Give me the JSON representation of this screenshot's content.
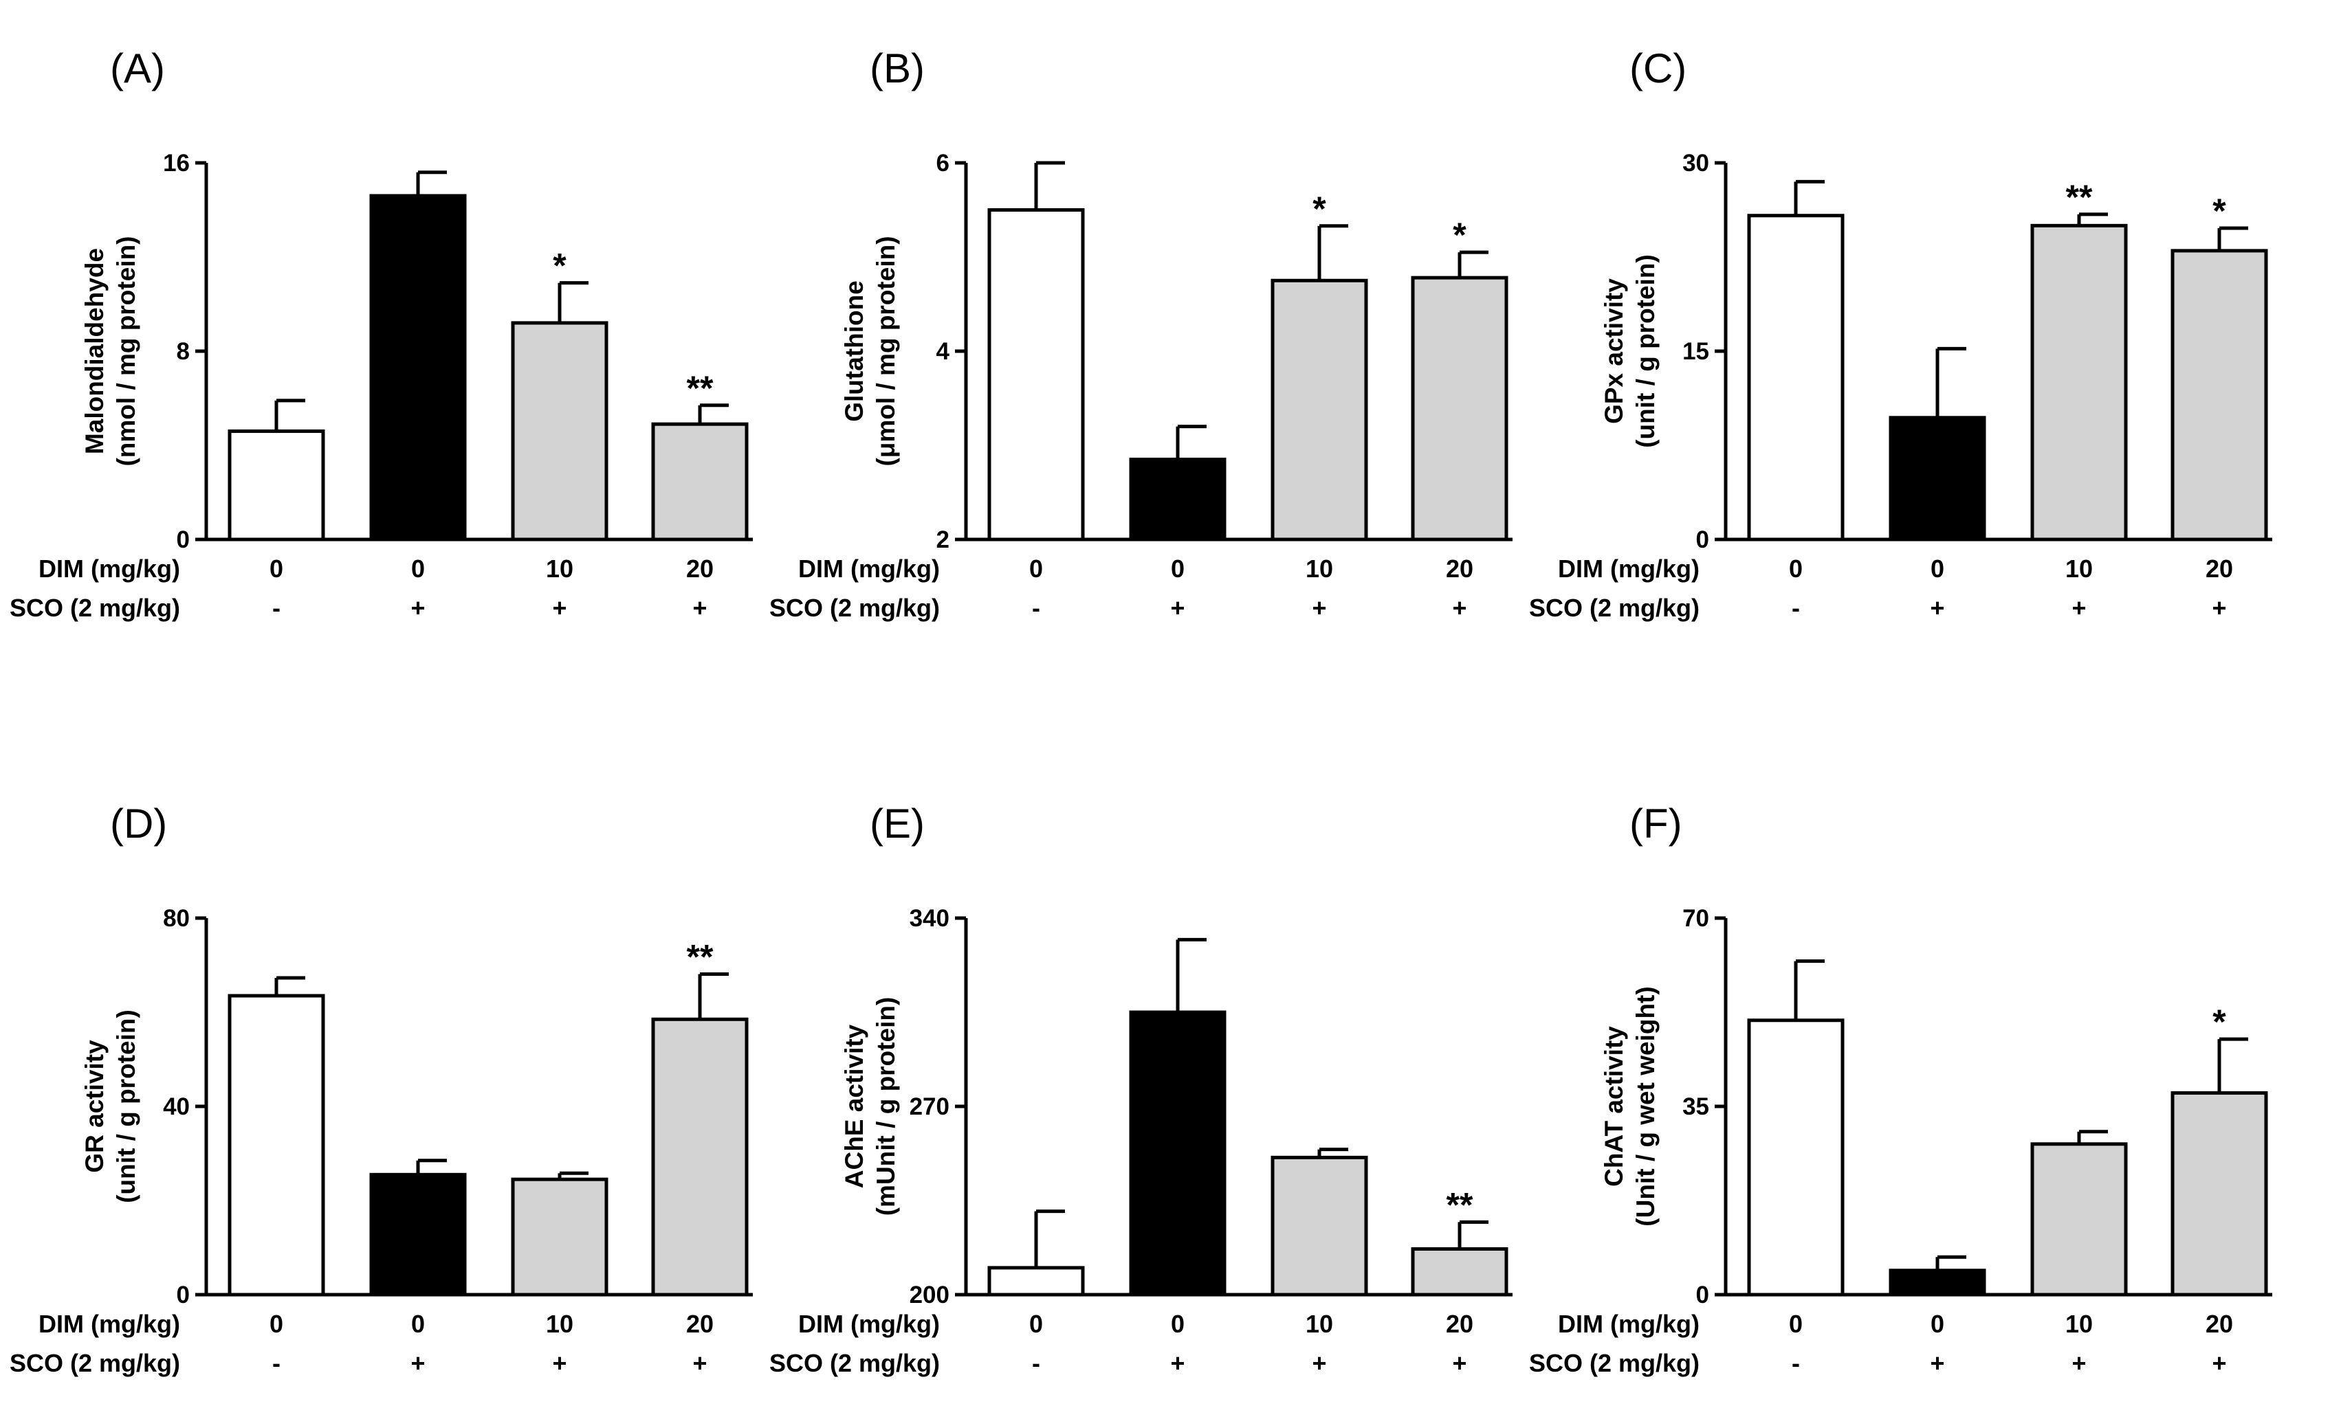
{
  "colors": {
    "control": "#ffffff",
    "sco": "#000000",
    "dim": "#d3d3d3",
    "stroke": "#000000"
  },
  "rows": {
    "dim_label": "DIM (mg/kg)",
    "sco_label": "SCO (2 mg/kg)",
    "dim_values": [
      "0",
      "0",
      "10",
      "20"
    ],
    "sco_values": [
      "-",
      "+",
      "+",
      "+"
    ]
  },
  "chart_data": [
    {
      "panel": "(A)",
      "type": "bar",
      "ylabel": [
        "Malondialdehyde",
        "(nmol / mg protein)"
      ],
      "ylim": [
        0,
        16
      ],
      "yticks": [
        0,
        8,
        16
      ],
      "ytick_labels": [
        "0",
        "8",
        "16"
      ],
      "values": [
        4.6,
        14.6,
        9.2,
        4.9
      ],
      "errors": [
        1.3,
        1.0,
        1.7,
        0.8
      ],
      "sig": [
        "",
        "",
        "*",
        "**"
      ]
    },
    {
      "panel": "(B)",
      "type": "bar",
      "ylabel": [
        "Glutathione",
        "(μmol / mg protein)"
      ],
      "ylim": [
        2,
        6
      ],
      "yticks": [
        2,
        4,
        6
      ],
      "ytick_labels": [
        "2",
        "4",
        "6"
      ],
      "values": [
        5.5,
        2.85,
        4.75,
        4.78
      ],
      "errors": [
        0.5,
        0.35,
        0.58,
        0.27
      ],
      "sig": [
        "",
        "",
        "*",
        "*"
      ]
    },
    {
      "panel": "(C)",
      "type": "bar",
      "ylabel": [
        "GPx activity",
        "(unit / g protein)"
      ],
      "ylim": [
        0,
        30
      ],
      "yticks": [
        0,
        15,
        30
      ],
      "ytick_labels": [
        "0",
        "15",
        "30"
      ],
      "values": [
        25.8,
        9.7,
        25.0,
        23.0
      ],
      "errors": [
        2.7,
        5.5,
        0.9,
        1.8
      ],
      "sig": [
        "",
        "",
        "**",
        "*"
      ]
    },
    {
      "panel": "(D)",
      "type": "bar",
      "ylabel": [
        "GR activity",
        "(unit / g protein)"
      ],
      "ylim": [
        0,
        80
      ],
      "yticks": [
        0,
        40,
        80
      ],
      "ytick_labels": [
        "0",
        "40",
        "80"
      ],
      "values": [
        63.5,
        25.5,
        24.5,
        58.5
      ],
      "errors": [
        3.8,
        3.0,
        1.3,
        9.6
      ],
      "sig": [
        "",
        "",
        "",
        "**"
      ]
    },
    {
      "panel": "(E)",
      "type": "bar",
      "ylabel": [
        "AChE activity",
        "(mUnit / g protein)"
      ],
      "ylim": [
        200,
        340
      ],
      "yticks": [
        200,
        270,
        340
      ],
      "ytick_labels": [
        "200",
        "270",
        "340"
      ],
      "values": [
        210,
        305,
        251,
        217
      ],
      "errors": [
        21,
        27,
        3,
        10
      ],
      "sig": [
        "",
        "",
        "",
        "**"
      ]
    },
    {
      "panel": "(F)",
      "type": "bar",
      "ylabel": [
        "ChAT activity",
        "(Unit / g wet weight)"
      ],
      "ylim": [
        0,
        70
      ],
      "yticks": [
        0,
        35,
        70
      ],
      "ytick_labels": [
        "0",
        "35",
        "70"
      ],
      "values": [
        51,
        4.5,
        28,
        37.5
      ],
      "errors": [
        11,
        2.5,
        2.3,
        10
      ],
      "sig": [
        "",
        "",
        "",
        "*"
      ]
    }
  ]
}
